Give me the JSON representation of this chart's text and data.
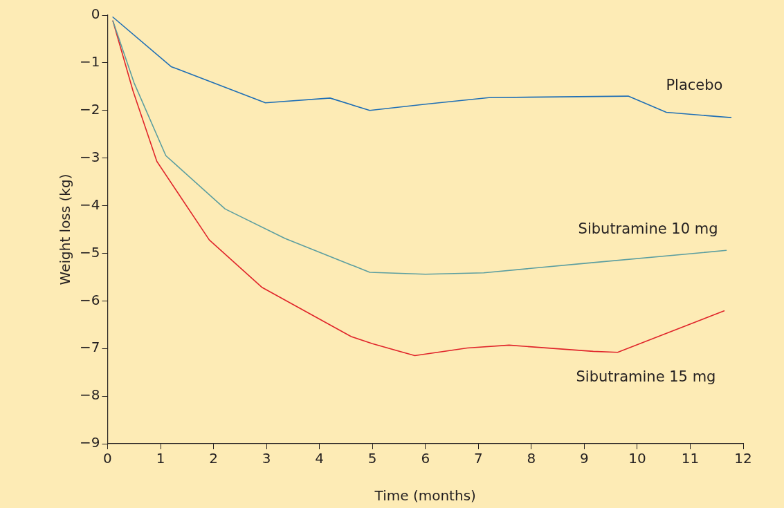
{
  "chart_data": {
    "type": "line",
    "xlabel": "Time (months)",
    "ylabel": "Weight loss (kg)",
    "xlim": [
      0,
      12
    ],
    "xticks": [
      0,
      1,
      2,
      3,
      4,
      5,
      6,
      7,
      8,
      9,
      10,
      11,
      12
    ],
    "ylim": [
      -9,
      0
    ],
    "yticks": [
      0,
      {
        "value": -1,
        "label": "−1"
      },
      {
        "value": -2,
        "label": "−2"
      },
      {
        "value": -3,
        "label": "−3"
      },
      {
        "value": -4,
        "label": "−4"
      },
      {
        "value": -5,
        "label": "−5"
      },
      {
        "value": -6,
        "label": "−6"
      },
      {
        "value": -7,
        "label": "−7"
      },
      {
        "value": -8,
        "label": "−8"
      },
      {
        "value": -9,
        "label": "−9"
      }
    ],
    "grid": false,
    "legend": false,
    "marker": "none",
    "line_style": "solid",
    "series": [
      {
        "name": "Placebo",
        "color": "#1f6fb5",
        "x": [
          0.1,
          1.2,
          2.98,
          4.2,
          4.95,
          6,
          7.2,
          9.83,
          10.55,
          11.77
        ],
        "values": [
          -0.04,
          -1.08,
          -1.84,
          -1.74,
          -2.0,
          -1.87,
          -1.73,
          -1.7,
          -2.04,
          -2.15
        ]
      },
      {
        "name": "Sibutramine 10 mg",
        "color": "#5b9ea0",
        "x": [
          0.1,
          0.5,
          1.1,
          2.22,
          3.35,
          4.95,
          6,
          7.1,
          9.03,
          11.68
        ],
        "values": [
          -0.12,
          -1.42,
          -2.95,
          -4.07,
          -4.69,
          -5.4,
          -5.44,
          -5.41,
          -5.21,
          -4.94
        ]
      },
      {
        "name": "Sibutramine 15 mg",
        "color": "#e0242a",
        "x": [
          0.1,
          0.48,
          0.93,
          1.92,
          2.92,
          4.6,
          5.0,
          5.8,
          6.79,
          7.58,
          9.17,
          9.63,
          11.64
        ],
        "values": [
          -0.12,
          -1.59,
          -3.07,
          -4.72,
          -5.72,
          -6.75,
          -6.9,
          -7.15,
          -6.99,
          -6.93,
          -7.06,
          -7.08,
          -6.21
        ]
      }
    ]
  }
}
